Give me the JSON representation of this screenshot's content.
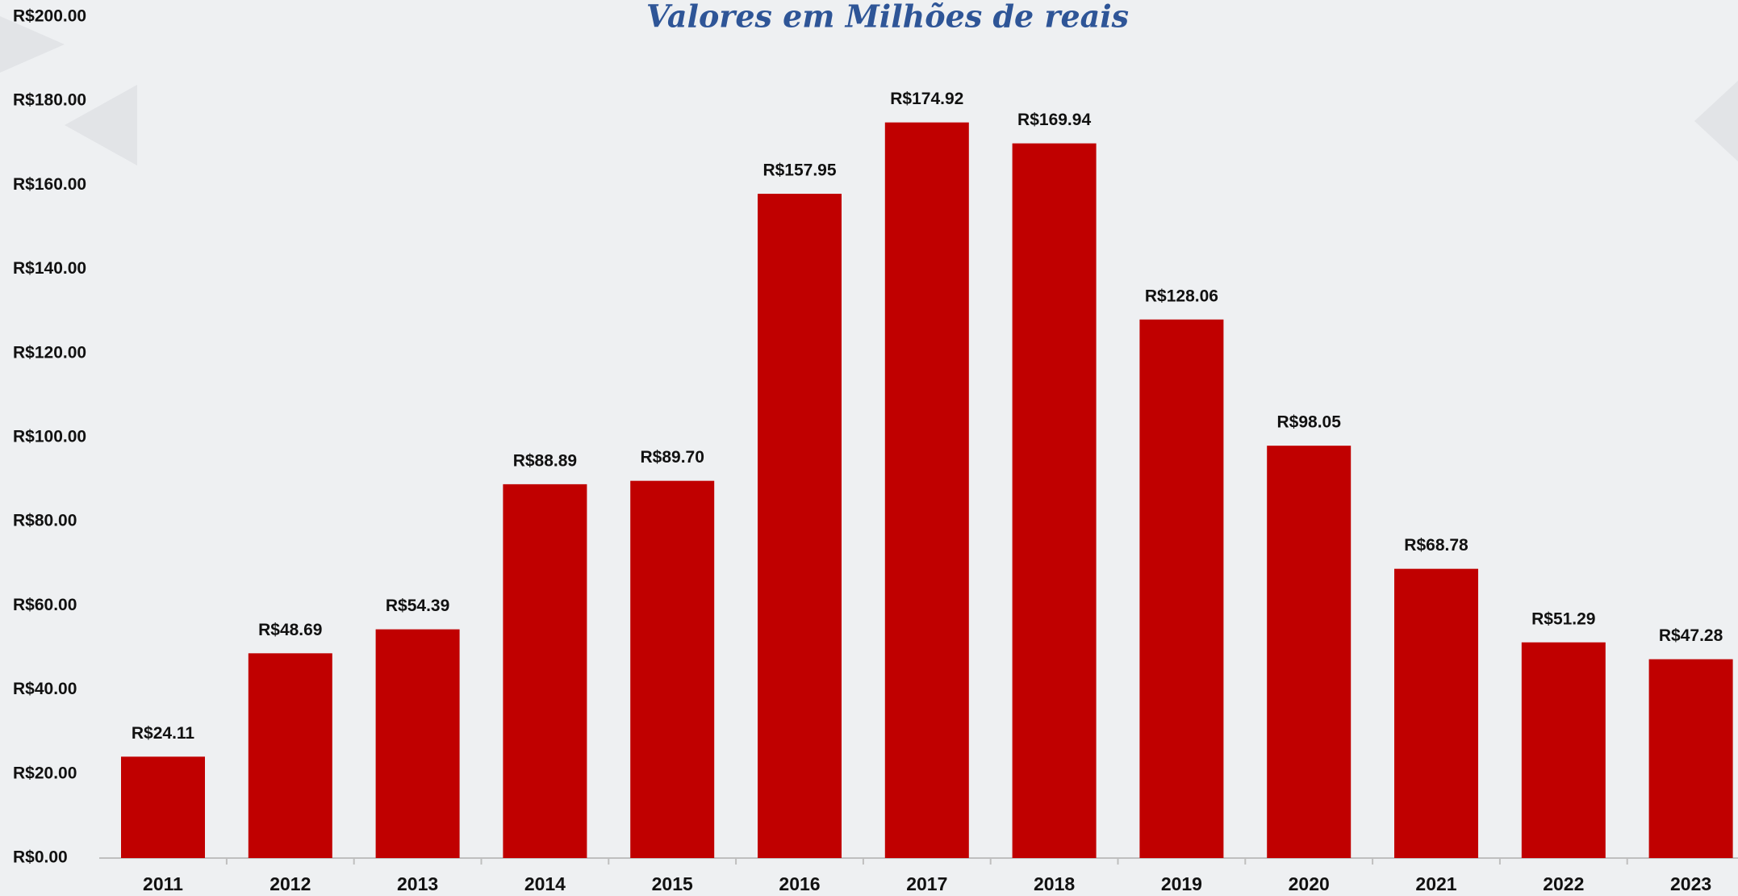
{
  "chart_data": {
    "type": "bar",
    "title": "Valores em Milhões de reais",
    "categories": [
      "2011",
      "2012",
      "2013",
      "2014",
      "2015",
      "2016",
      "2017",
      "2018",
      "2019",
      "2020",
      "2021",
      "2022",
      "2023"
    ],
    "values": [
      24.11,
      48.69,
      54.39,
      88.89,
      89.7,
      157.95,
      174.92,
      169.94,
      128.06,
      98.05,
      68.78,
      51.29,
      47.28
    ],
    "value_labels": [
      "R$24.11",
      "R$48.69",
      "R$54.39",
      "R$88.89",
      "R$89.70",
      "R$157.95",
      "R$174.92",
      "R$169.94",
      "R$128.06",
      "R$98.05",
      "R$68.78",
      "R$51.29",
      "R$47.28"
    ],
    "color": "#c00000",
    "ylim": [
      0,
      200
    ],
    "yticks": [
      {
        "value": 0,
        "label": "R$0.00"
      },
      {
        "value": 20,
        "label": "R$20.00"
      },
      {
        "value": 40,
        "label": "R$40.00"
      },
      {
        "value": 60,
        "label": "R$60.00"
      },
      {
        "value": 80,
        "label": "R$80.00"
      },
      {
        "value": 100,
        "label": "R$100.00"
      },
      {
        "value": 120,
        "label": "R$120.00"
      },
      {
        "value": 140,
        "label": "R$140.00"
      },
      {
        "value": 160,
        "label": "R$160.00"
      },
      {
        "value": 180,
        "label": "R$180.00"
      },
      {
        "value": 200,
        "label": "R$200.00"
      }
    ],
    "grid": false
  }
}
